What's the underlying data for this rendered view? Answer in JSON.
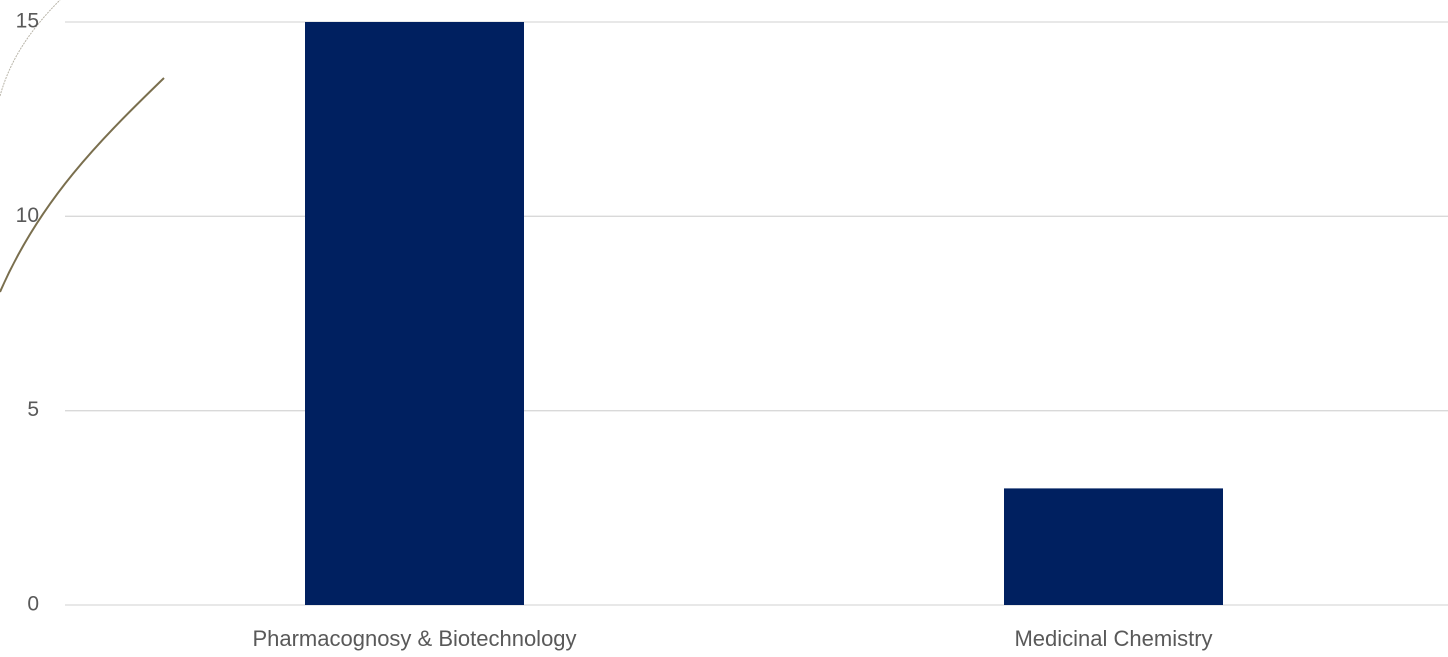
{
  "chart_data": {
    "type": "bar",
    "categories": [
      "Pharmacognosy & Biotechnology",
      "Medicinal Chemistry"
    ],
    "values": [
      15,
      3
    ],
    "color": "#002060",
    "ylim": [
      0,
      15
    ],
    "yticks": [
      0,
      5,
      10,
      15
    ],
    "grid": true
  }
}
